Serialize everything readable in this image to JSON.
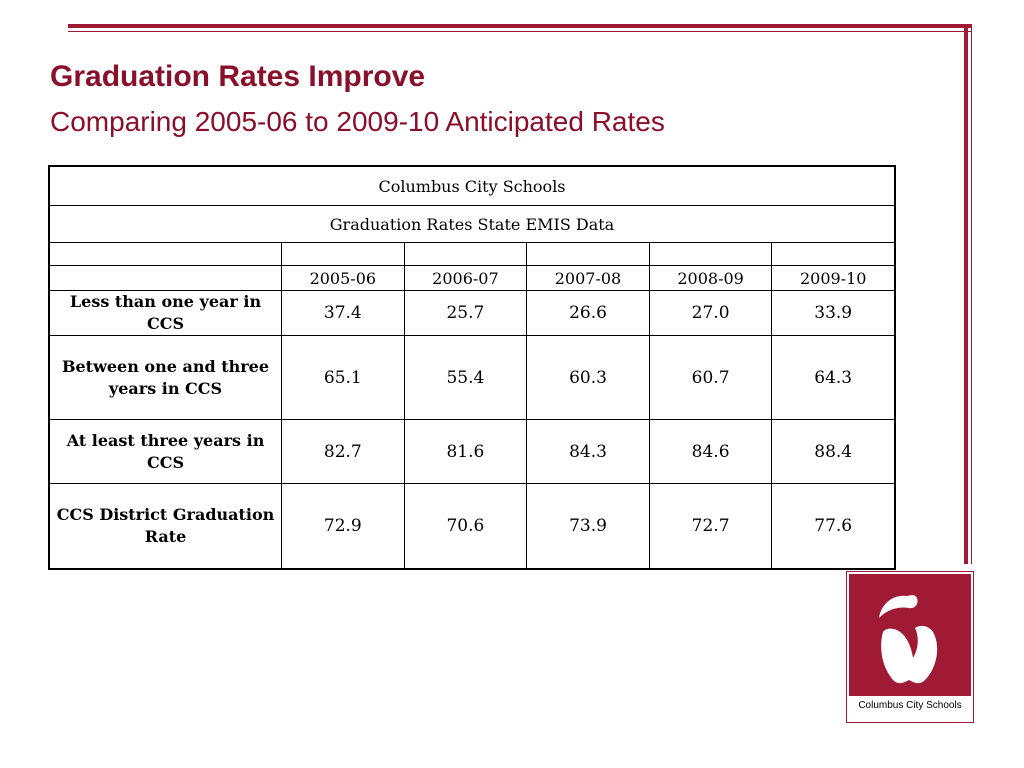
{
  "slide": {
    "title": "Graduation Rates Improve",
    "subtitle": "Comparing 2005-06 to 2009-10 Anticipated Rates",
    "accent_color": "#a01a36"
  },
  "table": {
    "title": "Columbus City Schools",
    "subtitle": "Graduation Rates  State EMIS Data",
    "years": [
      "2005-06",
      "2006-07",
      "2007-08",
      "2008-09",
      "2009-10"
    ],
    "rows": [
      {
        "label": "Less than one year in CCS",
        "values": [
          "37.4",
          "25.7",
          "26.6",
          "27.0",
          "33.9"
        ]
      },
      {
        "label": "Between one and three years in CCS",
        "values": [
          "65.1",
          "55.4",
          "60.3",
          "60.7",
          "64.3"
        ]
      },
      {
        "label": "At least three years in CCS",
        "values": [
          "82.7",
          "81.6",
          "84.3",
          "84.6",
          "88.4"
        ]
      },
      {
        "label": "CCS District Graduation Rate",
        "values": [
          "72.9",
          "70.6",
          "73.9",
          "72.7",
          "77.6"
        ]
      }
    ]
  },
  "logo": {
    "text": "Columbus City Schools",
    "icon": "apple-icon"
  }
}
